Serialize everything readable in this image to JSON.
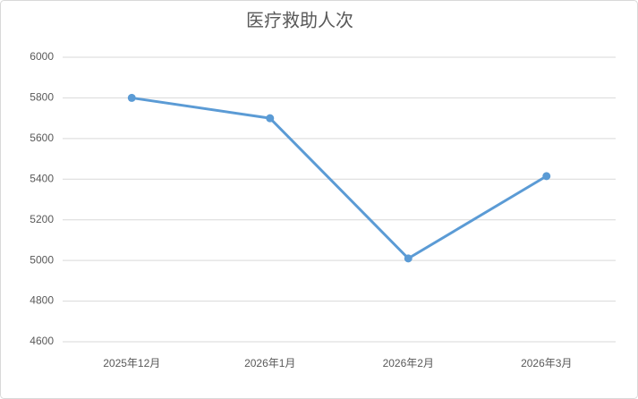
{
  "chart_data": {
    "type": "line",
    "title": "医疗救助人次",
    "categories": [
      "2025年12月",
      "2026年1月",
      "2026年2月",
      "2026年3月"
    ],
    "values": [
      5800,
      5700,
      5010,
      5415
    ],
    "color": "#5b9bd5",
    "ylim": [
      4600,
      6000
    ],
    "yticks": [
      4600,
      4800,
      5000,
      5200,
      5400,
      5600,
      5800,
      6000
    ],
    "grid": true
  }
}
